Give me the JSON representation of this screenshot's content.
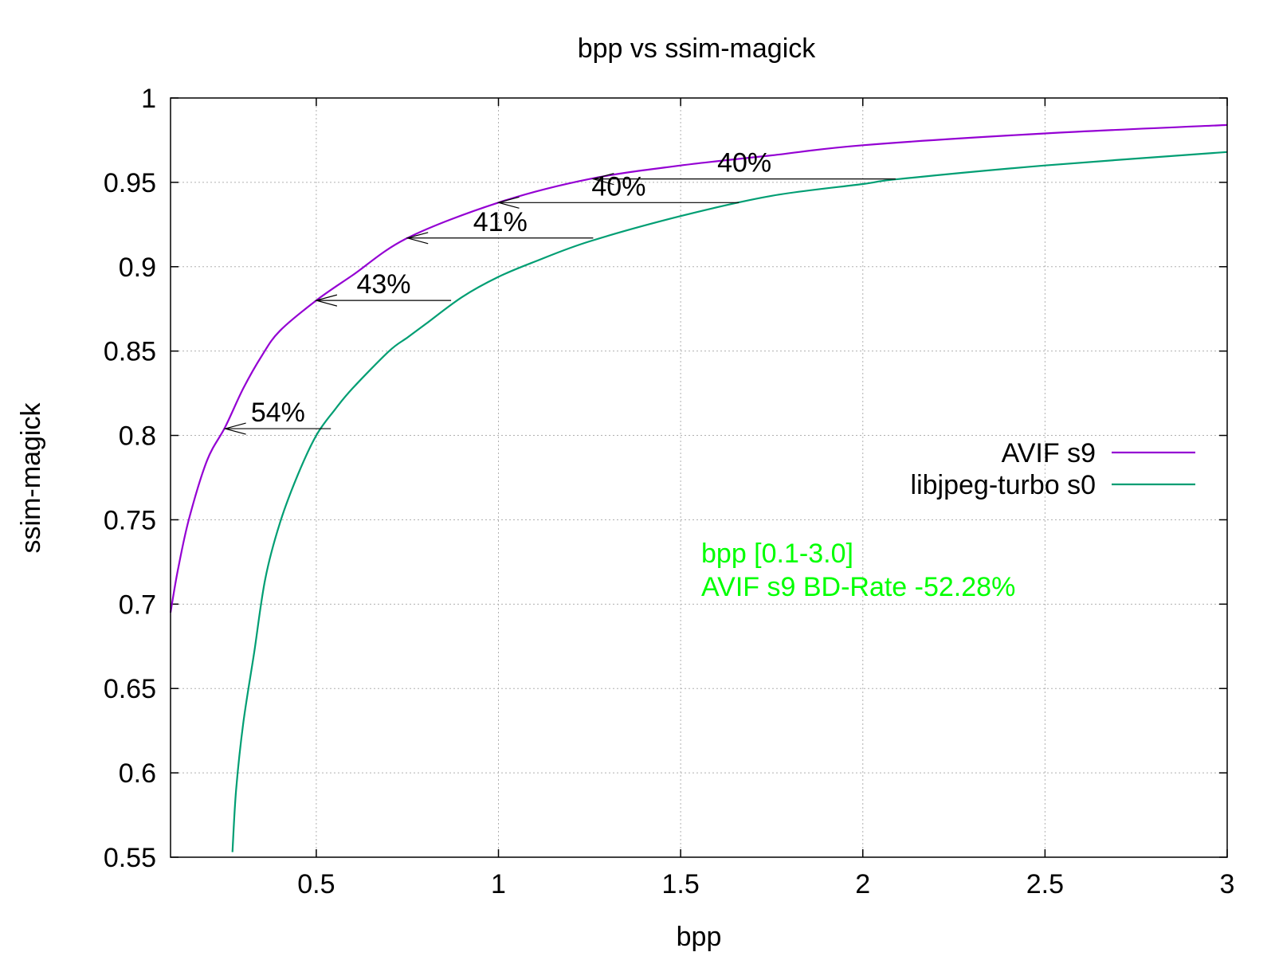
{
  "chart_data": {
    "type": "line",
    "title": "bpp vs ssim-magick",
    "xlabel": "bpp",
    "ylabel": "ssim-magick",
    "xlim": [
      0.1,
      3.0
    ],
    "ylim": [
      0.55,
      1.0
    ],
    "x_ticks": [
      0.5,
      1,
      1.5,
      2,
      2.5,
      3
    ],
    "x_tick_labels": [
      "0.5",
      "1",
      "1.5",
      "2",
      "2.5",
      "3"
    ],
    "y_ticks": [
      0.55,
      0.6,
      0.65,
      0.7,
      0.75,
      0.8,
      0.85,
      0.9,
      0.95,
      1.0
    ],
    "y_tick_labels": [
      "0.55",
      "0.6",
      "0.65",
      "0.7",
      "0.75",
      "0.8",
      "0.85",
      "0.9",
      "0.95",
      "1"
    ],
    "grid": true,
    "legend_position": "right",
    "series": [
      {
        "name": "AVIF s9",
        "color": "#9400d3",
        "x": [
          0.1,
          0.12,
          0.15,
          0.2,
          0.25,
          0.3,
          0.35,
          0.4,
          0.5,
          0.6,
          0.75,
          1.0,
          1.25,
          1.5,
          1.75,
          2.0,
          2.5,
          3.0
        ],
        "y": [
          0.695,
          0.72,
          0.75,
          0.785,
          0.805,
          0.828,
          0.847,
          0.862,
          0.88,
          0.895,
          0.917,
          0.938,
          0.952,
          0.96,
          0.966,
          0.972,
          0.979,
          0.984
        ]
      },
      {
        "name": "libjpeg-turbo s0",
        "color": "#009e73",
        "x": [
          0.27,
          0.28,
          0.3,
          0.33,
          0.36,
          0.4,
          0.45,
          0.5,
          0.55,
          0.6,
          0.7,
          0.75,
          0.8,
          0.9,
          1.0,
          1.1,
          1.25,
          1.5,
          1.75,
          2.0,
          2.1,
          2.5,
          3.0
        ],
        "y": [
          0.553,
          0.59,
          0.63,
          0.672,
          0.715,
          0.748,
          0.777,
          0.8,
          0.815,
          0.828,
          0.85,
          0.858,
          0.866,
          0.882,
          0.894,
          0.903,
          0.915,
          0.93,
          0.942,
          0.949,
          0.952,
          0.96,
          0.968
        ]
      }
    ],
    "annotations": [
      {
        "label": "54%",
        "from": [
          0.54,
          0.804
        ],
        "to": [
          0.25,
          0.804
        ]
      },
      {
        "label": "43%",
        "from": [
          0.87,
          0.88
        ],
        "to": [
          0.5,
          0.88
        ]
      },
      {
        "label": "41%",
        "from": [
          1.26,
          0.917
        ],
        "to": [
          0.75,
          0.917
        ]
      },
      {
        "label": "40%",
        "from": [
          1.66,
          0.938
        ],
        "to": [
          1.0,
          0.938
        ]
      },
      {
        "label": "40%",
        "from": [
          2.09,
          0.952
        ],
        "to": [
          1.26,
          0.952
        ]
      }
    ],
    "notes": [
      "bpp [0.1-3.0]",
      "AVIF s9 BD-Rate -52.28%"
    ],
    "note_color": "#00ff00"
  }
}
